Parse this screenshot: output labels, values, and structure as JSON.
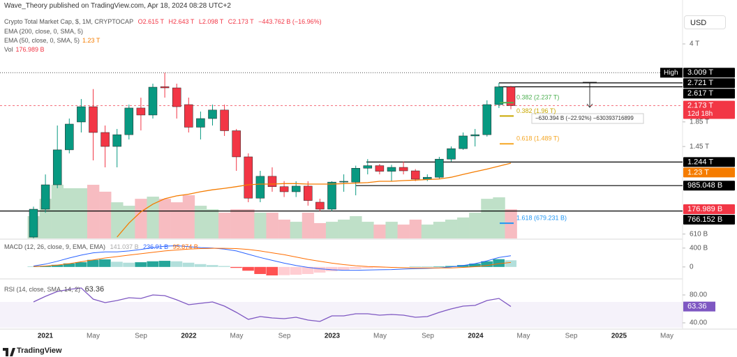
{
  "chart_data": {
    "type": "candlestick",
    "header": {
      "publisher": "Wave_Theory published on TradingView.com, Apr 18, 2024 08:28 UTC+2",
      "symbol": "Crypto Total Market Cap, $, 1M, CRYPTOCAP",
      "ohlc": [
        "O2.615 T",
        "H2.643 T",
        "L2.098 T",
        "C2.173 T"
      ],
      "change": "−443.762 B (−16.96%)",
      "ema200": "EMA (200, close, 0, SMA, 5)",
      "ema50": "EMA (50, close, 0, SMA, 5)",
      "ema50_value": "1.23 T",
      "vol": "Vol",
      "vol_value": "176.989 B",
      "currency": "USD",
      "footer": "TradingView"
    },
    "xticks": [
      "2021",
      "May",
      "Sep",
      "2022",
      "May",
      "Sep",
      "2023",
      "May",
      "Sep",
      "2024",
      "May",
      "Sep",
      "2025",
      "May"
    ],
    "open": [
      592,
      780,
      993,
      1403,
      1848,
      2150,
      1666,
      1451,
      1630,
      2122,
      1980,
      2620,
      2590,
      2195,
      1755,
      1912,
      2080,
      1695,
      1309,
      870,
      1080,
      975,
      927,
      980,
      836,
      780,
      1020,
      1020,
      1170,
      1200,
      1135,
      1180,
      1140,
      1050,
      1070,
      1280,
      1420,
      1610,
      1630,
      2195,
      2615
    ],
    "high": [
      800,
      1100,
      1785,
      1912,
      2320,
      2560,
      1785,
      1725,
      2195,
      2350,
      2700,
      3009,
      2700,
      2352,
      2049,
      2195,
      2195,
      1725,
      1355,
      1140,
      1180,
      1030,
      1028,
      1028,
      865,
      1028,
      1101,
      1200,
      1280,
      1221,
      1210,
      1250,
      1160,
      1101,
      1309,
      1451,
      1666,
      1725,
      2290,
      2721,
      2643
    ],
    "low": [
      585,
      753,
      960,
      1355,
      1666,
      1264,
      1180,
      1180,
      1555,
      1700,
      1912,
      2352,
      1912,
      1666,
      1555,
      1785,
      1610,
      1140,
      836,
      836,
      927,
      880,
      880,
      808,
      766,
      766,
      927,
      895,
      1101,
      1101,
      1030,
      1101,
      1030,
      1030,
      1050,
      1250,
      1403,
      1451,
      1600,
      2122,
      2098
    ],
    "close": [
      780,
      993,
      1403,
      1810,
      2150,
      1666,
      1451,
      1630,
      2122,
      1980,
      2608,
      2590,
      2150,
      1755,
      1912,
      2080,
      1695,
      1309,
      870,
      1080,
      975,
      927,
      980,
      850,
      780,
      1020,
      1028,
      1170,
      1200,
      1135,
      1180,
      1140,
      1050,
      1070,
      1280,
      1420,
      1610,
      1630,
      2195,
      2617,
      2173
    ],
    "up_color": "#089981",
    "down_color": "#f23645",
    "volume": [
      135,
      240,
      325,
      304,
      304,
      325,
      283,
      219,
      198,
      240,
      253,
      240,
      219,
      262,
      198,
      177,
      156,
      177,
      177,
      156,
      156,
      114,
      101,
      156,
      93,
      101,
      114,
      135,
      101,
      84,
      101,
      84,
      114,
      84,
      101,
      114,
      127,
      156,
      240,
      249,
      176.989
    ],
    "volume_up_color": "#bfe0c8",
    "volume_down_color": "#f7bcc1",
    "vol_ylim": [
      0,
      1000
    ],
    "ema50": [
      null,
      null,
      null,
      null,
      null,
      null,
      null,
      592,
      680,
      760,
      820,
      865,
      890,
      905,
      927,
      945,
      959,
      975,
      993,
      1000,
      1000,
      1005,
      1005,
      1000,
      1000,
      1000,
      1005,
      1010,
      1015,
      1028,
      1028,
      1035,
      1040,
      1046,
      1052,
      1070,
      1101,
      1130,
      1160,
      1195,
      1230
    ],
    "ema50_color": "#f57c00",
    "ylim": [
      584,
      4375
    ],
    "log_scale": true,
    "grid": false,
    "yticks": [
      {
        "value": 4000,
        "label": "4 T"
      },
      {
        "value": 1850,
        "label": "1.85 T"
      },
      {
        "value": 1450,
        "label": "1.45 T"
      },
      {
        "value": 610,
        "label": "610 B"
      }
    ],
    "high_label": "High",
    "countdown": "12d 18h",
    "price_labels": [
      {
        "value": 3009,
        "label": "3.009 T",
        "color": "#000000",
        "line": "dotted"
      },
      {
        "value": 2721,
        "label": "2.721 T",
        "color": "#000000",
        "line": "solid"
      },
      {
        "value": 2617,
        "label": "2.617 T",
        "color": "#000000",
        "line": "solid"
      },
      {
        "value": 2173,
        "label": "2.173 T",
        "color": "#f23645",
        "line": "dashed"
      },
      {
        "value": 1244,
        "label": "1.244 T",
        "color": "#000000",
        "line": "solid"
      },
      {
        "value": 1230,
        "label": "1.23 T",
        "color": "#f57c00"
      },
      {
        "value": 985.048,
        "label": "985.048 B",
        "color": "#000000",
        "line": "solid"
      },
      {
        "value": 176.989,
        "label": "176.989 B",
        "color": "#f23645",
        "axis": "vol"
      },
      {
        "value": 766.152,
        "label": "766.152 B",
        "color": "#000000",
        "line": "solid"
      }
    ],
    "fib_levels": [
      {
        "value": 2237,
        "label": "0.382 (2.237 T)",
        "color": "#4caf50"
      },
      {
        "value": 1960,
        "label": "0.382 (1.96 T)",
        "color": "#c9a800"
      },
      {
        "value": 1489,
        "label": "0.618 (1.489 T)",
        "color": "#f5a623"
      },
      {
        "value": 679.231,
        "label": "1.618 (679.231 B)",
        "color": "#2196f3"
      }
    ],
    "measure": "−630.394 B (−22.92%) −630393716899",
    "macd": {
      "title": "MACD (12, 26, close, 9, EMA, EMA)",
      "value_labels": [
        "141.037 B",
        "236.91 B",
        "95.874 B"
      ],
      "histogram": [
        5,
        20,
        45,
        75,
        100,
        150,
        160,
        110,
        90,
        100,
        120,
        130,
        120,
        90,
        60,
        40,
        20,
        -20,
        -80,
        -150,
        -180,
        -175,
        -165,
        -150,
        -120,
        -90,
        -60,
        -40,
        -25,
        -15,
        -5,
        0,
        5,
        5,
        10,
        20,
        40,
        70,
        120,
        165,
        141.037
      ],
      "macd": [
        20,
        60,
        120,
        190,
        250,
        300,
        320,
        320,
        340,
        370,
        410,
        440,
        450,
        430,
        410,
        400,
        380,
        340,
        270,
        200,
        140,
        80,
        30,
        -10,
        -40,
        -60,
        -70,
        -70,
        -65,
        -60,
        -55,
        -45,
        -35,
        -30,
        -20,
        0,
        30,
        70,
        130,
        200,
        236.91
      ],
      "signal": [
        10,
        20,
        40,
        70,
        110,
        150,
        190,
        220,
        250,
        280,
        310,
        340,
        360,
        380,
        390,
        395,
        395,
        390,
        370,
        340,
        300,
        260,
        210,
        160,
        120,
        80,
        50,
        25,
        10,
        0,
        -10,
        -15,
        -20,
        -22,
        -22,
        -20,
        -10,
        5,
        30,
        70,
        95.874
      ],
      "macd_color": "#2962ff",
      "signal_color": "#ff6d00",
      "ylim": [
        -180,
        560
      ],
      "yticks": [
        {
          "value": 400,
          "label": "400 B"
        },
        0
      ]
    },
    "rsi": {
      "title": "RSI (14, close, SMA, 14, 2)",
      "value_label": "63.36",
      "values": [
        70,
        78,
        85,
        88,
        90,
        74,
        69,
        72,
        76,
        75,
        80,
        79,
        73,
        66,
        68,
        70,
        64,
        55,
        45,
        49,
        47,
        46,
        48,
        44,
        42,
        50,
        50,
        53,
        53,
        51,
        52,
        51,
        48,
        49,
        55,
        60,
        64,
        65,
        72,
        75,
        63.36
      ],
      "color": "#7e57c2",
      "band": [
        30,
        70
      ],
      "ylim": [
        33,
        98
      ],
      "yticks": [
        {
          "value": 80,
          "label": "80.00"
        },
        {
          "value": 40,
          "label": "40.00"
        }
      ]
    }
  }
}
